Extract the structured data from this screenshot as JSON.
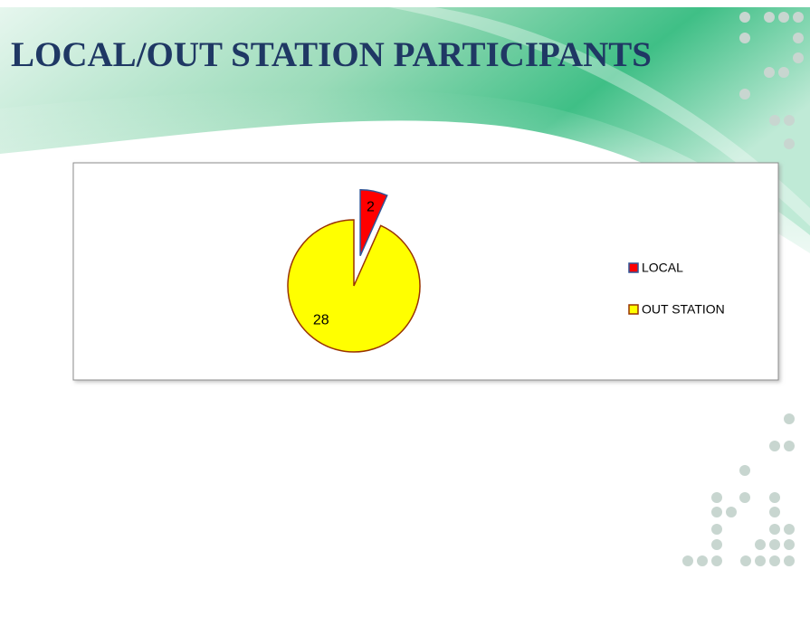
{
  "chart_data": {
    "type": "pie",
    "title": "LOCAL/OUT STATION PARTICIPANTS",
    "categories": [
      "LOCAL",
      "OUT STATION"
    ],
    "values": [
      2,
      28
    ],
    "colors": [
      "#ff0000",
      "#ffff00"
    ],
    "legend": "right"
  }
}
